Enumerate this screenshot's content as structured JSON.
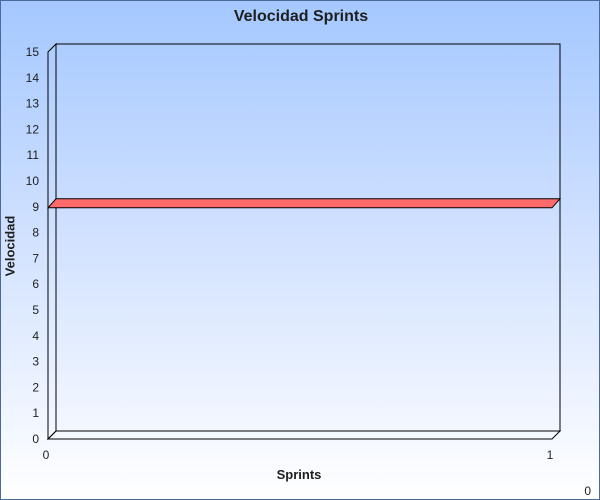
{
  "chart_data": {
    "type": "bar",
    "title": "Velocidad Sprints",
    "xlabel": "Sprints",
    "ylabel": "Velocidad",
    "y_ticks": [
      "0",
      "1",
      "2",
      "3",
      "4",
      "5",
      "6",
      "7",
      "8",
      "9",
      "10",
      "11",
      "12",
      "13",
      "14",
      "15"
    ],
    "x_ticks": [
      "0",
      "1"
    ],
    "ylim": [
      0,
      15
    ],
    "xlim": [
      0,
      1
    ],
    "series": [
      {
        "values": [
          9
        ],
        "color": "#ff6a6a"
      }
    ],
    "grid": false,
    "three_d": true,
    "corner_value": "0"
  },
  "colors": {
    "background_top": "#a4c8ff",
    "background_bottom": "#ffffff",
    "bar_fill": "#ff6a6a"
  }
}
